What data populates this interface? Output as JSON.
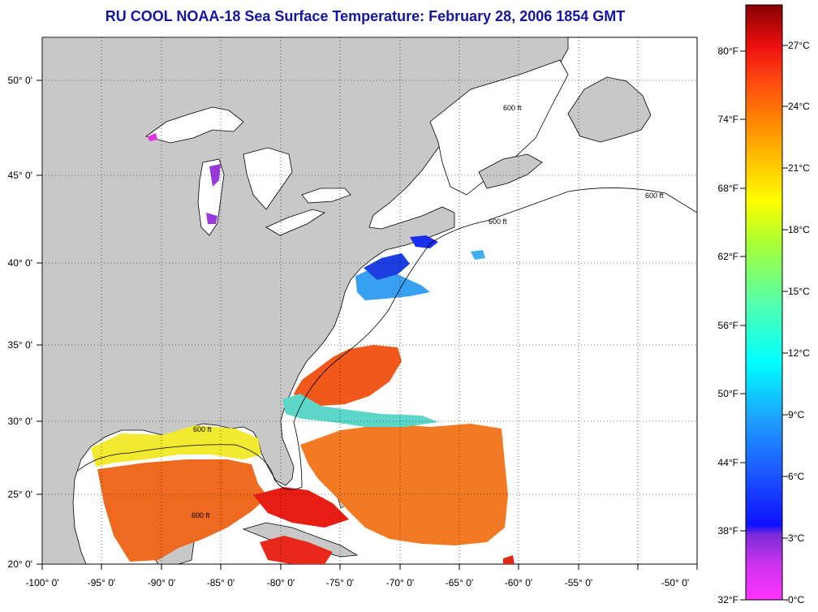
{
  "title": "RU COOL  NOAA-18  Sea Surface Temperature:  February 28, 2006 1854 GMT",
  "colors": {
    "land": "#c8c8c8",
    "ocean_nodata": "#ffffff",
    "title": "#1515a0"
  },
  "map": {
    "lon_range": [
      -100,
      -50
    ],
    "lat_range": [
      20,
      52.5
    ],
    "grid": "dotted",
    "lon_labels": [
      "-100° 0'",
      "-95° 0'",
      "-90° 0'",
      "-85° 0'",
      "-80° 0'",
      "-75° 0'",
      "-70° 0'",
      "-65° 0'",
      "-60° 0'",
      "-55° 0'",
      "-50° 0'"
    ],
    "lat_labels": [
      "20° 0'",
      "25° 0'",
      "30° 0'",
      "35° 0'",
      "40° 0'",
      "45° 0'",
      "50° 0'"
    ],
    "isobath_label": "600 ft"
  },
  "colorbar": {
    "fahrenheit_labels": [
      "32°F",
      "38°F",
      "44°F",
      "50°F",
      "56°F",
      "62°F",
      "68°F",
      "74°F",
      "80°F"
    ],
    "celsius_labels": [
      "0°C",
      "3°C",
      "6°C",
      "9°C",
      "12°C",
      "15°C",
      "18°C",
      "21°C",
      "24°C",
      "27°C"
    ],
    "range_c": [
      0,
      29
    ],
    "range_f": [
      32,
      84
    ]
  }
}
